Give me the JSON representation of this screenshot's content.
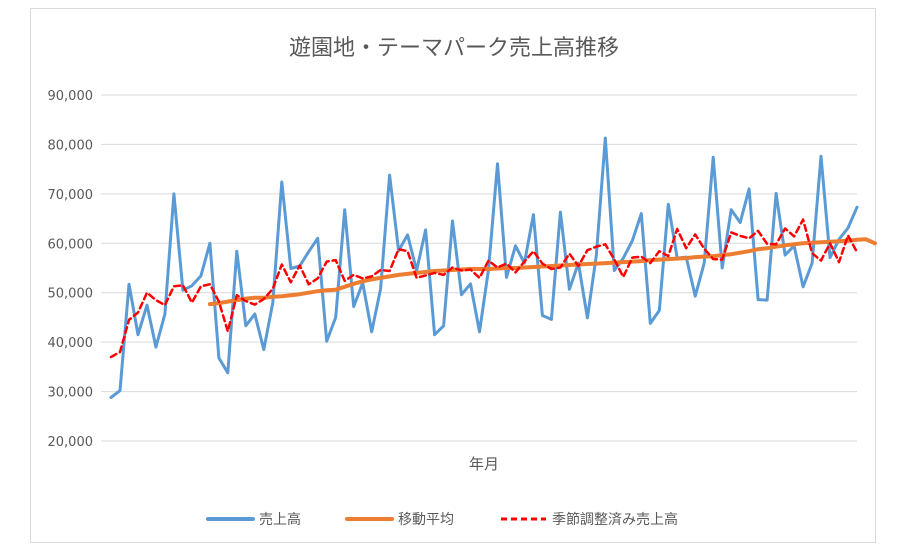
{
  "chart_data": {
    "type": "line",
    "title": "遊園地・テーマパーク売上高推移",
    "xlabel": "年月",
    "ylabel": "",
    "ylim": [
      20000,
      90000
    ],
    "yticks": [
      20000,
      30000,
      40000,
      50000,
      60000,
      70000,
      80000,
      90000
    ],
    "ytick_labels": [
      "20,000",
      "30,000",
      "40,000",
      "50,000",
      "60,000",
      "70,000",
      "80,000",
      "90,000"
    ],
    "grid": true,
    "legend_position": "bottom",
    "colors": {
      "sales": "#5b9bd5",
      "moving_average": "#ed7d31",
      "seasonally_adjusted": "#ff0000"
    },
    "series": [
      {
        "name": "売上高",
        "style": "solid",
        "values": [
          28800,
          30200,
          51700,
          41500,
          47500,
          39000,
          45700,
          70000,
          50500,
          51400,
          53400,
          60000,
          36800,
          33800,
          58400,
          43300,
          45700,
          38500,
          48000,
          72400,
          54900,
          55400,
          58300,
          61000,
          40200,
          45000,
          66800,
          47200,
          52000,
          42100,
          50800,
          73800,
          58500,
          61700,
          54500,
          62700,
          41500,
          43300,
          64500,
          49600,
          51800,
          42100,
          54700,
          76100,
          53100,
          59500,
          56000,
          65800,
          45400,
          44600,
          66300,
          50700,
          56000,
          44900,
          57500,
          81300,
          54500,
          57000,
          60500,
          66000,
          43800,
          46400,
          67900,
          57000,
          57200,
          49300,
          56000,
          77400,
          55000,
          66800,
          64200,
          71000,
          48600,
          48500,
          70100,
          57600,
          59500,
          51200,
          56000,
          77600,
          57100,
          60800,
          63100,
          67300
        ]
      },
      {
        "name": "移動平均",
        "style": "solid",
        "start_index": 11,
        "values": [
          47700,
          47900,
          48200,
          48500,
          48800,
          49000,
          49000,
          49200,
          49300,
          49500,
          49700,
          50000,
          50300,
          50500,
          50600,
          51200,
          51800,
          52300,
          52700,
          53000,
          53300,
          53600,
          53800,
          54000,
          54200,
          54400,
          54500,
          54600,
          54700,
          54800,
          54800,
          54800,
          54900,
          55000,
          55000,
          55100,
          55200,
          55300,
          55400,
          55500,
          55600,
          55700,
          55800,
          55900,
          56000,
          56100,
          56200,
          56300,
          56400,
          56600,
          56700,
          56800,
          56900,
          57000,
          57200,
          57300,
          57400,
          57600,
          57800,
          58100,
          58400,
          58800,
          59000,
          59300,
          59600,
          59800,
          60000,
          60100,
          60200,
          60300,
          60400,
          60500,
          60700,
          60800,
          60000
        ]
      },
      {
        "name": "季節調整済み売上高",
        "style": "dashed",
        "values": [
          37000,
          38000,
          44500,
          46000,
          50000,
          48500,
          47500,
          51300,
          51500,
          48000,
          51300,
          51700,
          48200,
          42200,
          49500,
          48300,
          47600,
          48700,
          50800,
          55700,
          52100,
          55500,
          51700,
          52900,
          56300,
          56600,
          52400,
          53600,
          52900,
          53300,
          54600,
          54400,
          58800,
          58400,
          53000,
          53500,
          54000,
          53600,
          55100,
          54500,
          54700,
          53000,
          56500,
          55100,
          55900,
          54100,
          56300,
          58400,
          55900,
          54800,
          55100,
          57900,
          55400,
          58600,
          59300,
          59800,
          56700,
          53200,
          57100,
          57300,
          56000,
          58400,
          57400,
          62900,
          59000,
          61800,
          58900,
          56800,
          56700,
          62200,
          61500,
          61000,
          62500,
          59900,
          59800,
          63000,
          61400,
          64800,
          58000,
          56500,
          60000,
          56200,
          61600,
          58200
        ]
      }
    ]
  }
}
